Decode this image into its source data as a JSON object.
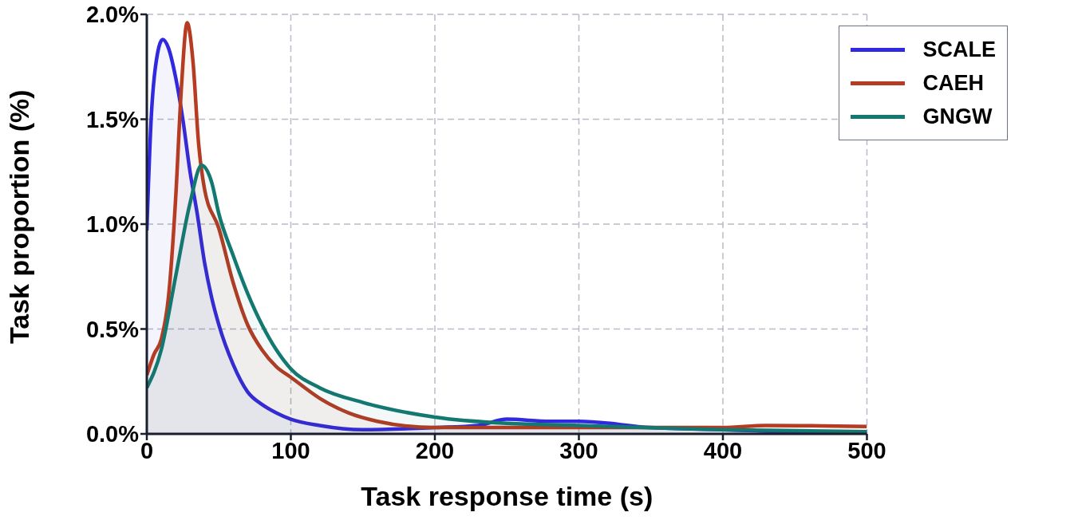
{
  "chart_data": {
    "type": "area",
    "xlabel": "Task response time (s)",
    "ylabel": "Task proportion (%)",
    "xlim": [
      0,
      500
    ],
    "xticks": [
      0,
      100,
      200,
      300,
      400,
      500
    ],
    "ylim": [
      0,
      2.0
    ],
    "yticks": [
      {
        "value": 0,
        "label": "0.0%"
      },
      {
        "value": 0.5,
        "label": "0.5%"
      },
      {
        "value": 1.0,
        "label": "1.0%"
      },
      {
        "value": 1.5,
        "label": "1.5%"
      },
      {
        "value": 2.0,
        "label": "2.0%"
      }
    ],
    "grid": true,
    "legend": "top right",
    "line_style": "solid",
    "marker": "none",
    "series": [
      {
        "name": "SCALE",
        "color": "#3029e0",
        "x": [
          0,
          3,
          6,
          11,
          15,
          20,
          25,
          30,
          35,
          40,
          45,
          50,
          60,
          70,
          80,
          90,
          100,
          120,
          150,
          200,
          230,
          250,
          280,
          300,
          350,
          400,
          450,
          500
        ],
        "values": [
          0.97,
          1.5,
          1.75,
          1.88,
          1.84,
          1.7,
          1.5,
          1.25,
          1.05,
          0.82,
          0.65,
          0.52,
          0.33,
          0.2,
          0.14,
          0.1,
          0.07,
          0.04,
          0.02,
          0.03,
          0.04,
          0.07,
          0.06,
          0.06,
          0.03,
          0.02,
          0.01,
          0.01
        ]
      },
      {
        "name": "CAEH",
        "color": "#b53b22",
        "x": [
          0,
          5,
          10,
          15,
          20,
          24,
          28,
          32,
          36,
          40,
          50,
          60,
          70,
          80,
          90,
          100,
          120,
          140,
          160,
          200,
          300,
          400,
          430,
          500
        ],
        "values": [
          0.28,
          0.38,
          0.45,
          0.65,
          1.12,
          1.65,
          1.96,
          1.78,
          1.38,
          1.17,
          0.98,
          0.72,
          0.52,
          0.4,
          0.32,
          0.27,
          0.17,
          0.1,
          0.06,
          0.03,
          0.03,
          0.03,
          0.04,
          0.035
        ]
      },
      {
        "name": "GNGW",
        "color": "#127870",
        "x": [
          0,
          10,
          20,
          30,
          38,
          45,
          50,
          60,
          70,
          80,
          90,
          100,
          120,
          150,
          200,
          250,
          300,
          400,
          500
        ],
        "values": [
          0.22,
          0.4,
          0.75,
          1.1,
          1.28,
          1.2,
          1.05,
          0.85,
          0.67,
          0.52,
          0.4,
          0.31,
          0.22,
          0.15,
          0.08,
          0.05,
          0.04,
          0.02,
          0.01
        ]
      }
    ]
  }
}
